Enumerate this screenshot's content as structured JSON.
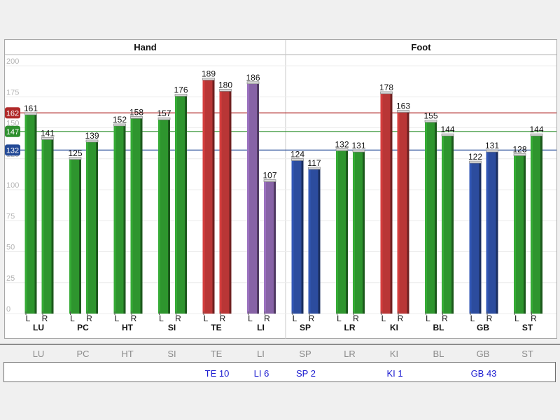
{
  "chart_data": {
    "type": "bar",
    "groups": [
      {
        "label": "Hand",
        "meridians": [
          "LU",
          "PC",
          "HT",
          "SI",
          "TE",
          "LI"
        ]
      },
      {
        "label": "Foot",
        "meridians": [
          "SP",
          "LR",
          "KI",
          "BL",
          "GB",
          "ST"
        ]
      }
    ],
    "categories": [
      "LU",
      "PC",
      "HT",
      "SI",
      "TE",
      "LI",
      "SP",
      "LR",
      "KI",
      "BL",
      "GB",
      "ST"
    ],
    "sides": [
      "L",
      "R"
    ],
    "series": [
      {
        "name": "L",
        "values": [
          161,
          125,
          152,
          157,
          189,
          186,
          124,
          132,
          178,
          155,
          122,
          128
        ]
      },
      {
        "name": "R",
        "values": [
          141,
          139,
          158,
          176,
          180,
          107,
          117,
          131,
          163,
          144,
          131,
          144
        ]
      }
    ],
    "bar_colors": {
      "L": [
        "green",
        "green",
        "green",
        "green",
        "red",
        "purple",
        "blue",
        "green",
        "red",
        "green",
        "blue",
        "green"
      ],
      "R": [
        "green",
        "green",
        "green",
        "green",
        "red",
        "purple",
        "blue",
        "green",
        "red",
        "green",
        "blue",
        "green"
      ]
    },
    "reference_lines": [
      {
        "value": 162,
        "label": "162",
        "color": "#b02a2a"
      },
      {
        "value": 147,
        "label": "147",
        "color": "#2e8f2e"
      },
      {
        "value": 132,
        "label": "132",
        "color": "#244a96"
      }
    ],
    "y_ticks": [
      0,
      25,
      50,
      75,
      100,
      125,
      150,
      175,
      200
    ],
    "ylim": [
      0,
      200
    ],
    "grid": true,
    "legend": "none"
  },
  "palette": {
    "green": "#2e952e",
    "red": "#b93636",
    "purple": "#8763a6",
    "blue": "#2c4c9e"
  },
  "summary": {
    "labels": [
      "LU",
      "PC",
      "HT",
      "SI",
      "TE",
      "LI",
      "SP",
      "LR",
      "KI",
      "BL",
      "GB",
      "ST"
    ],
    "points": [
      "",
      "",
      "",
      "",
      "TE 10",
      "LI 6",
      "SP 2",
      "",
      "KI 1",
      "",
      "GB 43",
      ""
    ]
  }
}
